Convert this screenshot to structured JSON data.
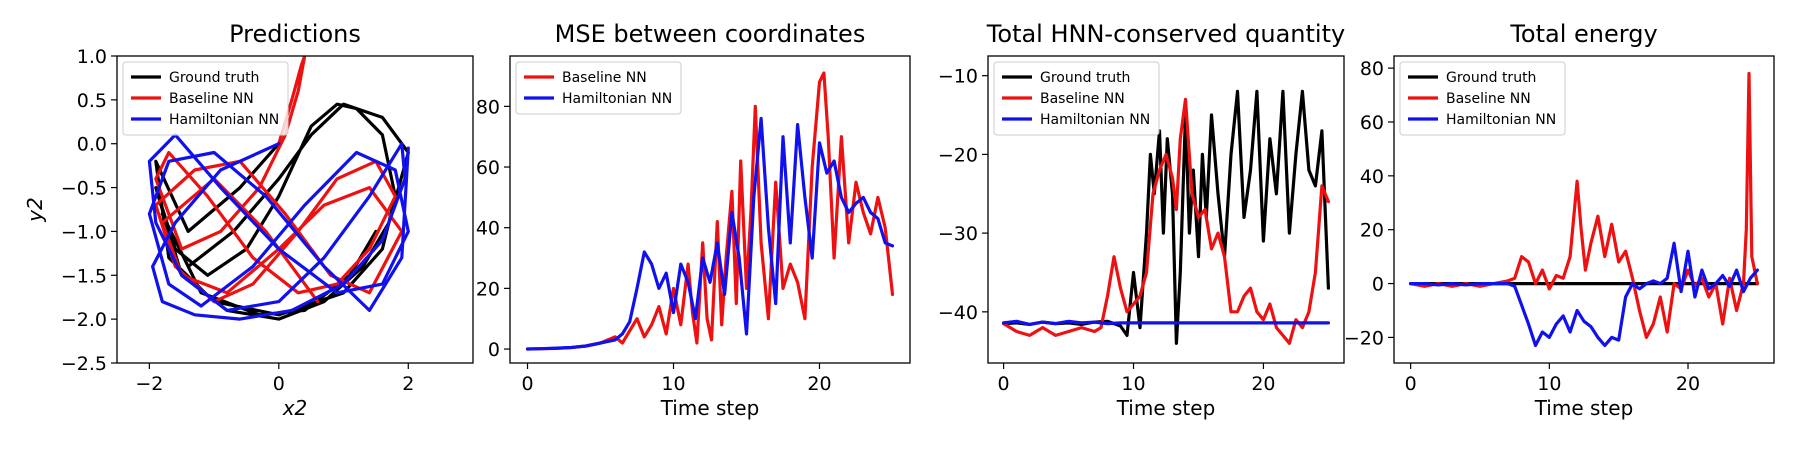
{
  "colors": {
    "ground_truth": "#000000",
    "baseline": "#ee1111",
    "hamiltonian": "#1111ee"
  },
  "chart_data": [
    {
      "id": "predictions",
      "type": "line",
      "title": "Predictions",
      "xlabel": "x2",
      "ylabel": "y2",
      "xlim": [
        -2.5,
        3.0
      ],
      "ylim": [
        -2.5,
        1.0
      ],
      "xticks": [
        -2,
        0,
        2
      ],
      "xtick_labels": [
        "−2",
        "0",
        "2"
      ],
      "yticks": [
        -2.5,
        -2.0,
        -1.5,
        -1.0,
        -0.5,
        0.0,
        0.5,
        1.0
      ],
      "ytick_labels": [
        "−2.5",
        "−2.0",
        "−1.5",
        "−1.0",
        "−0.5",
        "0.0",
        "0.5",
        "1.0"
      ],
      "legend": "top-left",
      "series": [
        {
          "name": "Ground truth",
          "color": "#000000",
          "x": [
            0.0,
            -0.6,
            -1.4,
            -1.9,
            -1.7,
            -1.0,
            0.0,
            1.0,
            1.6,
            1.8,
            1.6,
            1.2,
            0.9,
            0.5,
            0.0,
            -0.5,
            -1.1,
            -1.6,
            -1.9,
            -1.5,
            -0.8,
            0.0,
            0.7,
            1.3,
            1.7,
            2.0,
            1.6,
            1.0,
            0.5,
            0.0,
            -0.7,
            -1.4,
            -1.8,
            -1.2,
            -0.3,
            0.4,
            1.1,
            1.5
          ],
          "y": [
            0.0,
            -0.5,
            -1.0,
            -0.2,
            -1.3,
            -1.8,
            -1.95,
            -1.7,
            -1.2,
            -0.6,
            0.1,
            0.4,
            0.45,
            0.2,
            -0.6,
            -1.2,
            -1.5,
            -1.2,
            -0.5,
            -1.5,
            -1.9,
            -2.0,
            -1.8,
            -1.4,
            -0.9,
            -0.1,
            0.3,
            0.45,
            0.1,
            -0.4,
            -1.0,
            -1.4,
            -0.8,
            -1.7,
            -1.95,
            -1.9,
            -1.5,
            -1.0
          ]
        },
        {
          "name": "Baseline NN",
          "color": "#ee1111",
          "x": [
            0.0,
            0.2,
            0.35,
            0.4,
            0.3,
            0.1,
            -0.3,
            -0.9,
            -1.5,
            -1.9,
            -1.7,
            -1.1,
            -0.4,
            0.3,
            0.9,
            1.4,
            1.8,
            1.5,
            0.9,
            0.3,
            -0.4,
            -1.0,
            -1.6,
            -1.9,
            -1.3,
            -0.6,
            0.1,
            0.8,
            1.4,
            1.9,
            1.4,
            0.7,
            0.0,
            -0.8,
            -1.5,
            -1.8,
            -1.0,
            -0.2,
            0.6
          ],
          "y": [
            0.0,
            0.5,
            0.9,
            1.0,
            0.6,
            0.1,
            -0.5,
            -1.0,
            -1.2,
            -0.4,
            -0.1,
            -0.6,
            -1.3,
            -1.7,
            -1.6,
            -1.2,
            -0.6,
            -0.2,
            -0.4,
            -1.0,
            -1.6,
            -1.8,
            -1.4,
            -0.7,
            -0.3,
            -0.2,
            -0.8,
            -1.5,
            -1.7,
            -1.0,
            -0.5,
            -0.7,
            -1.2,
            -1.7,
            -1.5,
            -0.9,
            -0.4,
            -1.0,
            -1.8
          ]
        },
        {
          "name": "Hamiltonian NN",
          "color": "#1111ee",
          "x": [
            0.0,
            -0.9,
            -1.6,
            -1.95,
            -1.8,
            -1.3,
            -0.6,
            0.2,
            1.0,
            1.6,
            1.95,
            1.9,
            1.4,
            0.7,
            0.0,
            -0.8,
            -1.5,
            -1.9,
            -2.0,
            -1.6,
            -0.9,
            0.0,
            0.9,
            1.6,
            2.0,
            1.8,
            1.2,
            0.4,
            -0.4,
            -1.2,
            -1.7,
            -2.0,
            -1.7,
            -1.0,
            -0.2,
            0.7,
            1.4,
            1.9,
            2.0
          ],
          "y": [
            0.0,
            -0.3,
            -0.9,
            -1.4,
            -1.8,
            -1.95,
            -2.0,
            -1.9,
            -1.6,
            -1.1,
            -0.4,
            0.0,
            -0.6,
            -1.3,
            -1.8,
            -1.9,
            -1.5,
            -0.9,
            -0.2,
            0.1,
            -0.5,
            -1.2,
            -1.7,
            -1.6,
            -1.0,
            -0.3,
            -0.1,
            -0.7,
            -1.4,
            -1.85,
            -1.6,
            -0.8,
            -0.2,
            -0.1,
            -0.6,
            -1.4,
            -1.9,
            -1.3,
            -0.05
          ]
        }
      ]
    },
    {
      "id": "mse",
      "type": "line",
      "title": "MSE between coordinates",
      "xlabel": "Time step",
      "ylabel": "",
      "xlim": [
        -1.2,
        26.2
      ],
      "ylim": [
        -4.6,
        96.6
      ],
      "xticks": [
        0,
        10,
        20
      ],
      "xtick_labels": [
        "0",
        "10",
        "20"
      ],
      "yticks": [
        0,
        20,
        40,
        60,
        80
      ],
      "ytick_labels": [
        "0",
        "20",
        "40",
        "60",
        "80"
      ],
      "legend": "top-left",
      "series": [
        {
          "name": "Baseline NN",
          "color": "#ee1111",
          "x": [
            0,
            1,
            2,
            3,
            4,
            5,
            6,
            6.5,
            7,
            7.5,
            8,
            8.5,
            9,
            9.5,
            10,
            10.5,
            11,
            11.3,
            11.6,
            12,
            12.3,
            12.6,
            13,
            13.3,
            13.6,
            14,
            14.3,
            14.6,
            15,
            15.3,
            15.6,
            16,
            16.5,
            17,
            17.5,
            18,
            18.5,
            19,
            19.5,
            20,
            20.3,
            20.6,
            21,
            21.5,
            22,
            22.5,
            23,
            23.5,
            24,
            24.5,
            25
          ],
          "y": [
            0,
            0.1,
            0.2,
            0.5,
            1,
            2,
            4,
            2,
            6,
            10,
            4,
            8,
            14,
            5,
            20,
            8,
            28,
            12,
            2,
            35,
            10,
            3,
            42,
            8,
            30,
            52,
            15,
            62,
            20,
            45,
            80,
            35,
            10,
            55,
            20,
            28,
            22,
            10,
            60,
            88,
            91,
            70,
            30,
            70,
            35,
            55,
            45,
            38,
            50,
            40,
            18
          ]
        },
        {
          "name": "Hamiltonian NN",
          "color": "#1111ee",
          "x": [
            0,
            1,
            2,
            3,
            4,
            5,
            6,
            6.5,
            7,
            7.5,
            8,
            8.5,
            9,
            9.5,
            10,
            10.5,
            11,
            11.5,
            12,
            12.5,
            13,
            13.5,
            14,
            14.5,
            15,
            15.5,
            16,
            16.5,
            17,
            17.5,
            18,
            18.5,
            19,
            19.5,
            20,
            20.5,
            21,
            21.5,
            22,
            22.5,
            23,
            23.5,
            24,
            24.5,
            25
          ],
          "y": [
            0,
            0.1,
            0.3,
            0.5,
            1,
            2,
            3,
            5,
            9,
            20,
            32,
            28,
            20,
            25,
            12,
            28,
            22,
            10,
            30,
            22,
            35,
            18,
            45,
            30,
            5,
            50,
            76,
            40,
            15,
            70,
            35,
            74,
            50,
            30,
            68,
            58,
            62,
            50,
            45,
            48,
            50,
            45,
            43,
            35,
            34
          ]
        }
      ]
    },
    {
      "id": "hnn",
      "type": "line",
      "title": "Total HNN-conserved quantity",
      "xlabel": "Time step",
      "ylabel": "",
      "xlim": [
        -1.2,
        26.2
      ],
      "ylim": [
        -46.5,
        -7.5
      ],
      "xticks": [
        0,
        10,
        20
      ],
      "xtick_labels": [
        "0",
        "10",
        "20"
      ],
      "yticks": [
        -40,
        -30,
        -20,
        -10
      ],
      "ytick_labels": [
        "−40",
        "−30",
        "−20",
        "−10"
      ],
      "legend": "top-left",
      "series": [
        {
          "name": "Ground truth",
          "color": "#000000",
          "x": [
            0,
            1,
            2,
            3,
            4,
            5,
            6,
            7,
            8,
            9,
            9.5,
            10,
            10.5,
            11,
            11.3,
            11.6,
            12,
            12.3,
            12.6,
            13,
            13.3,
            13.6,
            14,
            14.3,
            14.6,
            15,
            15.3,
            15.6,
            16,
            16.5,
            17,
            17.5,
            18,
            18.5,
            19,
            19.5,
            20,
            20.5,
            21,
            21.5,
            22,
            22.5,
            23,
            23.5,
            24,
            24.5,
            25
          ],
          "y": [
            -41.5,
            -41.4,
            -41.6,
            -41.3,
            -41.5,
            -41.4,
            -41.6,
            -41.3,
            -41.2,
            -41.8,
            -43,
            -35,
            -42,
            -30,
            -20,
            -25,
            -17,
            -30,
            -18,
            -25,
            -44,
            -35,
            -15,
            -30,
            -22,
            -33,
            -20,
            -28,
            -15,
            -25,
            -33,
            -20,
            -12,
            -28,
            -22,
            -12,
            -31,
            -18,
            -25,
            -12,
            -30,
            -20,
            -12,
            -22,
            -24,
            -17,
            -37
          ]
        },
        {
          "name": "Baseline NN",
          "color": "#ee1111",
          "x": [
            0,
            1,
            2,
            3,
            4,
            5,
            6,
            7,
            7.5,
            8,
            8.5,
            9,
            9.5,
            10,
            10.5,
            11,
            11.5,
            12,
            12.5,
            13,
            13.3,
            13.6,
            14,
            14.5,
            15,
            15.5,
            16,
            16.5,
            17,
            17.5,
            18,
            18.5,
            19,
            19.5,
            20,
            20.5,
            21,
            21.5,
            22,
            22.5,
            23,
            23.5,
            24,
            24.5,
            25
          ],
          "y": [
            -41.5,
            -42.5,
            -43,
            -42,
            -43,
            -42.5,
            -42,
            -42.5,
            -42,
            -38,
            -33,
            -37,
            -40,
            -39,
            -38,
            -35,
            -25,
            -22,
            -20,
            -23,
            -27,
            -18,
            -13,
            -25,
            -28,
            -27,
            -32,
            -30,
            -33,
            -40,
            -40,
            -38,
            -37,
            -40,
            -41,
            -39,
            -42,
            -43,
            -44,
            -41,
            -42,
            -40,
            -35,
            -24,
            -26
          ]
        },
        {
          "name": "Hamiltonian NN",
          "color": "#1111ee",
          "x": [
            0,
            1,
            2,
            3,
            4,
            5,
            6,
            7,
            8,
            9,
            10,
            12,
            14,
            16,
            18,
            20,
            22,
            24,
            25
          ],
          "y": [
            -41.4,
            -41.2,
            -41.6,
            -41.3,
            -41.5,
            -41.2,
            -41.4,
            -41.3,
            -41.5,
            -41.4,
            -41.4,
            -41.4,
            -41.4,
            -41.4,
            -41.4,
            -41.4,
            -41.4,
            -41.4,
            -41.4
          ]
        }
      ]
    },
    {
      "id": "energy",
      "type": "line",
      "title": "Total energy",
      "xlabel": "Time step",
      "ylabel": "",
      "xlim": [
        -1.2,
        26.2
      ],
      "ylim": [
        -29.5,
        84.5
      ],
      "xticks": [
        0,
        10,
        20
      ],
      "xtick_labels": [
        "0",
        "10",
        "20"
      ],
      "yticks": [
        -20,
        0,
        20,
        40,
        60,
        80
      ],
      "ytick_labels": [
        "−20",
        "0",
        "20",
        "40",
        "60",
        "80"
      ],
      "legend": "top-left",
      "series": [
        {
          "name": "Ground truth",
          "color": "#000000",
          "x": [
            0,
            5,
            10,
            15,
            20,
            25
          ],
          "y": [
            0,
            0,
            0,
            0,
            0,
            0
          ]
        },
        {
          "name": "Baseline NN",
          "color": "#ee1111",
          "x": [
            0,
            1,
            2,
            3,
            4,
            5,
            6,
            7,
            7.5,
            8,
            8.5,
            9,
            9.5,
            10,
            10.5,
            11,
            11.5,
            12,
            12.3,
            12.6,
            13,
            13.5,
            14,
            14.5,
            15,
            15.5,
            16,
            16.5,
            17,
            17.5,
            18,
            18.5,
            19,
            19.5,
            20,
            20.5,
            21,
            21.5,
            22,
            22.5,
            23,
            23.5,
            24,
            24.2,
            24.4,
            24.6,
            25
          ],
          "y": [
            0,
            -1,
            0,
            -1,
            0,
            -1,
            0,
            1,
            2,
            10,
            8,
            0,
            5,
            -2,
            3,
            2,
            10,
            38,
            20,
            5,
            15,
            25,
            10,
            22,
            8,
            12,
            2,
            -10,
            -20,
            -15,
            -5,
            -18,
            0,
            -2,
            5,
            -1,
            2,
            -5,
            0,
            -15,
            2,
            -10,
            0,
            20,
            78,
            10,
            0
          ]
        },
        {
          "name": "Hamiltonian NN",
          "color": "#1111ee",
          "x": [
            0,
            1,
            2,
            3,
            4,
            5,
            6,
            7,
            7.5,
            8,
            8.5,
            9,
            9.5,
            10,
            10.5,
            11,
            11.5,
            12,
            12.5,
            13,
            13.5,
            14,
            14.5,
            15,
            15.5,
            16,
            16.5,
            17,
            17.5,
            18,
            18.5,
            19,
            19.5,
            20,
            20.5,
            21,
            21.5,
            22,
            22.5,
            23,
            23.5,
            24,
            24.5,
            25
          ],
          "y": [
            0,
            0,
            -0.5,
            0,
            -0.5,
            0,
            0,
            0,
            -1,
            -8,
            -15,
            -23,
            -18,
            -20,
            -15,
            -12,
            -18,
            -10,
            -14,
            -16,
            -20,
            -23,
            -20,
            -21,
            -5,
            0,
            -2,
            0,
            1,
            0,
            2,
            15,
            -3,
            12,
            -5,
            5,
            -2,
            0,
            3,
            -1,
            5,
            -3,
            2,
            5
          ]
        }
      ]
    }
  ]
}
